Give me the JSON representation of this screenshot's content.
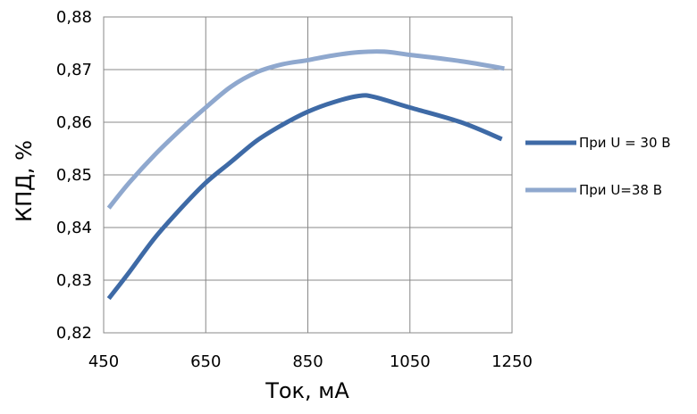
{
  "chart_data": {
    "type": "line",
    "xlabel": "Ток, мА",
    "ylabel": "КПД, %",
    "xlim": [
      450,
      1250
    ],
    "ylim": [
      0.82,
      0.88
    ],
    "x_ticks": [
      450,
      650,
      850,
      1050,
      1250
    ],
    "x_tick_labels": [
      "450",
      "650",
      "850",
      "1050",
      "1250"
    ],
    "y_ticks": [
      0.82,
      0.83,
      0.84,
      0.85,
      0.86,
      0.87,
      0.88
    ],
    "y_tick_labels": [
      "0,82",
      "0,83",
      "0,84",
      "0,85",
      "0,86",
      "0,87",
      "0,88"
    ],
    "grid": true,
    "legend_position": "right",
    "series": [
      {
        "name": "При U = 30 В",
        "color": "#3e6aa6",
        "x": [
          460,
          500,
          550,
          600,
          650,
          700,
          750,
          800,
          850,
          900,
          950,
          980,
          1050,
          1150,
          1230
        ],
        "y": [
          0.8265,
          0.8315,
          0.838,
          0.8435,
          0.8485,
          0.8525,
          0.8565,
          0.8595,
          0.862,
          0.8638,
          0.865,
          0.8648,
          0.8628,
          0.86,
          0.8568
        ]
      },
      {
        "name": "При U=38 В",
        "color": "#8fa8ce",
        "x": [
          460,
          500,
          550,
          600,
          650,
          700,
          750,
          800,
          850,
          900,
          950,
          1000,
          1050,
          1150,
          1235
        ],
        "y": [
          0.8437,
          0.8485,
          0.8538,
          0.8585,
          0.8628,
          0.8668,
          0.8695,
          0.871,
          0.8718,
          0.8727,
          0.8733,
          0.8734,
          0.8728,
          0.8716,
          0.8702
        ]
      }
    ]
  }
}
